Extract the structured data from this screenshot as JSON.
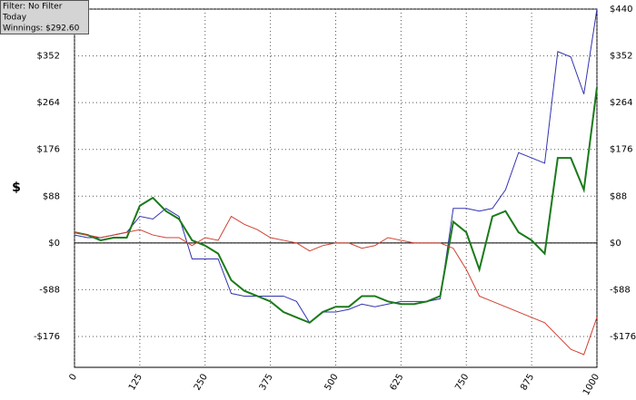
{
  "chart_data": {
    "type": "line",
    "ylabel": "$",
    "annotations": [
      "Filter: No Filter",
      "Today",
      "Winnings: $292.60"
    ],
    "x": [
      0,
      25,
      50,
      75,
      100,
      125,
      150,
      175,
      200,
      225,
      250,
      275,
      300,
      325,
      350,
      375,
      400,
      425,
      450,
      475,
      500,
      525,
      550,
      575,
      600,
      625,
      650,
      675,
      700,
      725,
      750,
      775,
      800,
      825,
      850,
      875,
      900,
      925,
      950,
      975,
      1000
    ],
    "series": [
      {
        "color": "#3333b0",
        "values": [
          15,
          10,
          10,
          15,
          20,
          50,
          45,
          65,
          50,
          -30,
          -30,
          -30,
          -95,
          -100,
          -100,
          -100,
          -100,
          -110,
          -150,
          -130,
          -130,
          -125,
          -115,
          -120,
          -115,
          -110,
          -110,
          -110,
          -105,
          65,
          65,
          60,
          65,
          100,
          170,
          160,
          150,
          360,
          350,
          280,
          440
        ]
      },
      {
        "color": "#1a7a1a",
        "values": [
          20,
          15,
          5,
          10,
          10,
          70,
          85,
          60,
          45,
          5,
          -5,
          -20,
          -70,
          -90,
          -100,
          -110,
          -130,
          -140,
          -150,
          -130,
          -120,
          -120,
          -100,
          -100,
          -110,
          -115,
          -115,
          -110,
          -100,
          40,
          20,
          -50,
          50,
          60,
          20,
          5,
          -20,
          160,
          160,
          100,
          292.6
        ]
      },
      {
        "color": "#d04030",
        "values": [
          20,
          15,
          10,
          15,
          20,
          25,
          15,
          10,
          10,
          -5,
          10,
          5,
          50,
          35,
          25,
          10,
          5,
          0,
          -15,
          -5,
          0,
          0,
          -10,
          -5,
          10,
          5,
          0,
          0,
          0,
          -10,
          -50,
          -100,
          -110,
          -120,
          -130,
          -140,
          -150,
          -175,
          -200,
          -210,
          -140
        ]
      }
    ],
    "xlim": [
      0,
      1000
    ],
    "xticks": [
      0,
      125,
      250,
      375,
      500,
      625,
      750,
      875,
      1000
    ],
    "ylim": [
      -234,
      440
    ],
    "yticks": [
      {
        "value": 440,
        "label": "$440"
      },
      {
        "value": 352,
        "label": "$352"
      },
      {
        "value": 264,
        "label": "$264"
      },
      {
        "value": 176,
        "label": "$176"
      },
      {
        "value": 88,
        "label": "$88"
      },
      {
        "value": 0,
        "label": "$0"
      },
      {
        "value": -88,
        "label": "-$88"
      },
      {
        "value": -176,
        "label": "-$176"
      }
    ],
    "grid": true
  }
}
